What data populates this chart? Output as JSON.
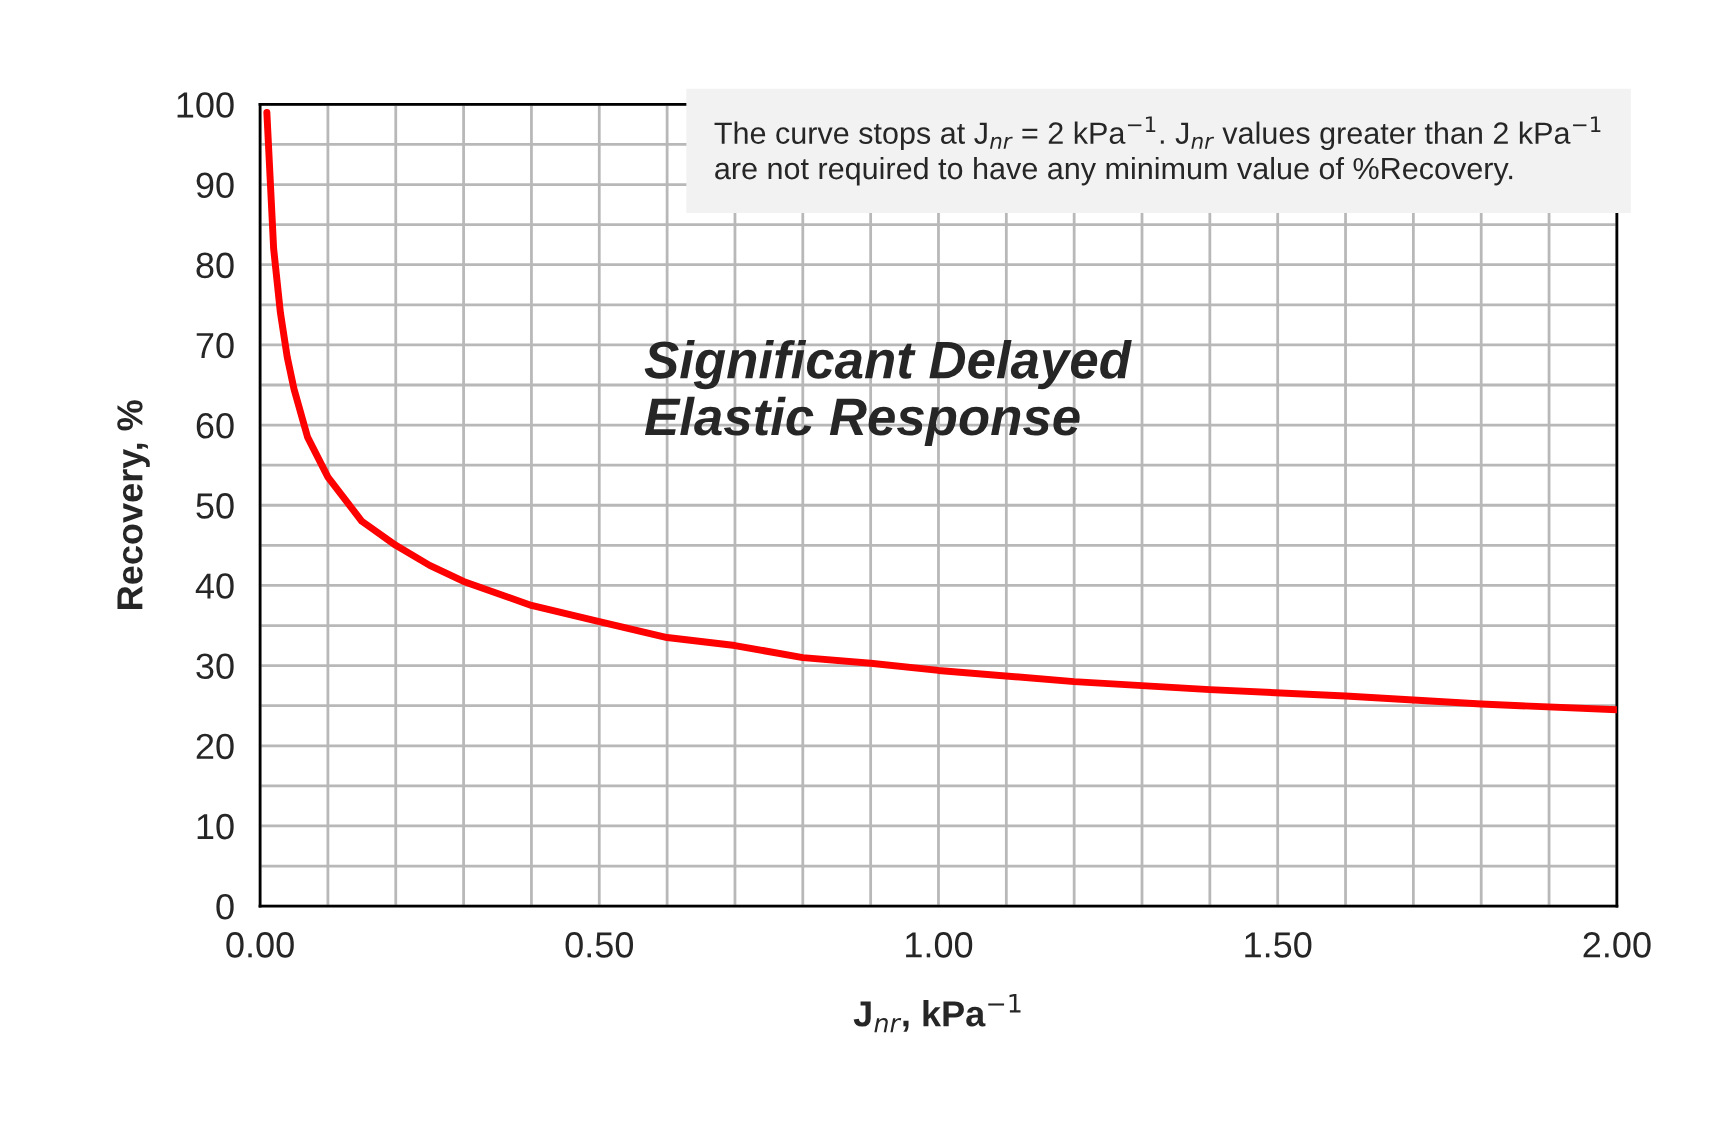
{
  "chart_data": {
    "type": "line",
    "xlabel": "J$_{nr}$, kPa$^{−1}$",
    "ylabel": "Recovery, %",
    "annotations": [
      "The curve stops at J$_{nr}$ = 2 kPa$^{−1}$. J$_{nr}$ values greater than 2 kPa$^{−1}$\nare not required to have any minimum value of %Recovery.",
      "Significant Delayed\nElastic Response"
    ],
    "series": [
      {
        "color": "#ff0000",
        "x": [
          0.01,
          0.02,
          0.03,
          0.04,
          0.05,
          0.07,
          0.1,
          0.15,
          0.2,
          0.25,
          0.3,
          0.4,
          0.5,
          0.6,
          0.7,
          0.8,
          0.9,
          1.0,
          1.2,
          1.4,
          1.6,
          1.8,
          2.0
        ],
        "values": [
          99,
          82,
          74,
          68.5,
          64.5,
          58.5,
          53.5,
          48,
          45,
          42.5,
          40.5,
          37.5,
          35.5,
          33.5,
          32.5,
          31,
          30.3,
          29.4,
          28,
          27,
          26.2,
          25.2,
          24.5
        ]
      }
    ],
    "xlim": [
      0,
      2
    ],
    "ylim": [
      0,
      100
    ],
    "xticks": [
      {
        "value": 0,
        "label": "0.00"
      },
      {
        "value": 0.1,
        "label": null
      },
      {
        "value": 0.2,
        "label": null
      },
      {
        "value": 0.3,
        "label": null
      },
      {
        "value": 0.4,
        "label": null
      },
      {
        "value": 0.5,
        "label": "0.50"
      },
      {
        "value": 0.6,
        "label": null
      },
      {
        "value": 0.7,
        "label": null
      },
      {
        "value": 0.8,
        "label": null
      },
      {
        "value": 0.9,
        "label": null
      },
      {
        "value": 1.0,
        "label": "1.00"
      },
      {
        "value": 1.1,
        "label": null
      },
      {
        "value": 1.2,
        "label": null
      },
      {
        "value": 1.3,
        "label": null
      },
      {
        "value": 1.4,
        "label": null
      },
      {
        "value": 1.5,
        "label": "1.50"
      },
      {
        "value": 1.6,
        "label": null
      },
      {
        "value": 1.7,
        "label": null
      },
      {
        "value": 1.8,
        "label": null
      },
      {
        "value": 1.9,
        "label": null
      },
      {
        "value": 2.0,
        "label": "2.00"
      }
    ],
    "yticks": [
      0,
      {
        "value": 5,
        "label": null
      },
      10,
      {
        "value": 15,
        "label": null
      },
      20,
      {
        "value": 25,
        "label": null
      },
      30,
      {
        "value": 35,
        "label": null
      },
      40,
      {
        "value": 45,
        "label": null
      },
      50,
      {
        "value": 55,
        "label": null
      },
      60,
      {
        "value": 65,
        "label": null
      },
      70,
      {
        "value": 75,
        "label": null
      },
      80,
      {
        "value": 85,
        "label": null
      },
      90,
      {
        "value": 95,
        "label": null
      },
      100
    ],
    "grid": true,
    "marker": "none",
    "line_style": "solid"
  }
}
